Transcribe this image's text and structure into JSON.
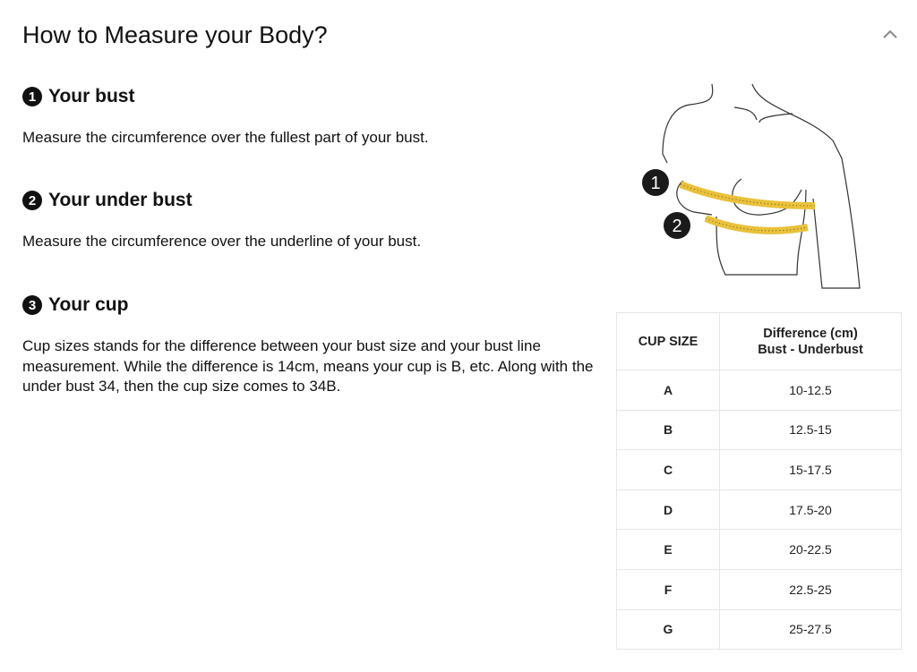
{
  "header": {
    "title": "How to Measure your Body?",
    "collapse_icon": "chevron-up-icon"
  },
  "sections": [
    {
      "number": "1",
      "heading": "Your bust",
      "text": "Measure the circumference over the fullest part of your bust."
    },
    {
      "number": "2",
      "heading": "Your under bust",
      "text": "Measure the circumference over the underline of your bust."
    },
    {
      "number": "3",
      "heading": "Your cup",
      "text": "Cup sizes stands for the difference between your bust size and your bust line measurement. While the difference is 14cm,  means your cup is B, etc. Along with the under bust 34, then the cup size comes to 34B."
    }
  ],
  "illustration": {
    "marker1": "1",
    "marker2": "2",
    "tape_color": "#e9c13a"
  },
  "table": {
    "headers": {
      "cup": "CUP SIZE",
      "diff_line1": "Difference (cm)",
      "diff_line2": "Bust - Underbust"
    },
    "rows": [
      {
        "cup": "A",
        "diff": "10-12.5"
      },
      {
        "cup": "B",
        "diff": "12.5-15"
      },
      {
        "cup": "C",
        "diff": "15-17.5"
      },
      {
        "cup": "D",
        "diff": "17.5-20"
      },
      {
        "cup": "E",
        "diff": "20-22.5"
      },
      {
        "cup": "F",
        "diff": "22.5-25"
      },
      {
        "cup": "G",
        "diff": "25-27.5"
      }
    ]
  }
}
